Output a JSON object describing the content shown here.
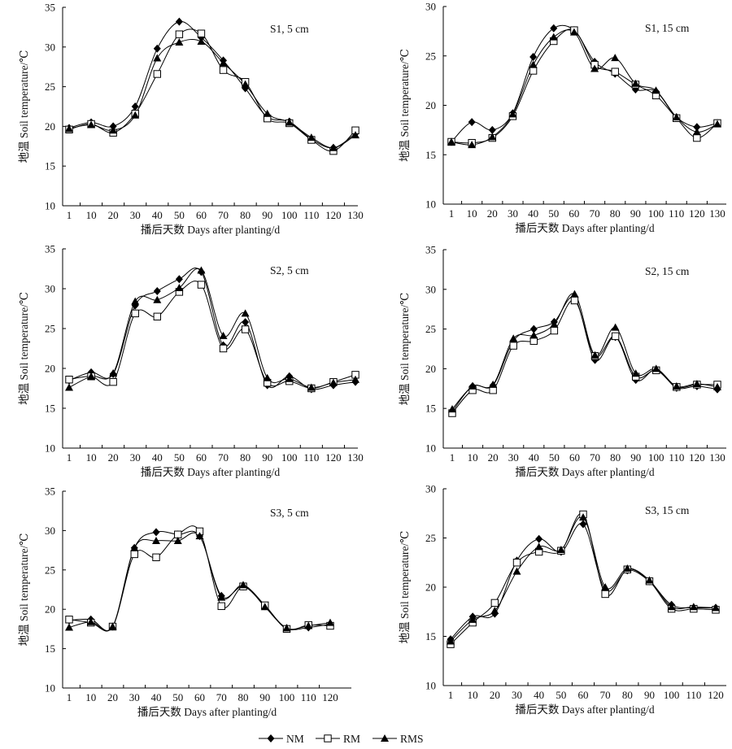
{
  "chart_data": [
    {
      "type": "line",
      "title": "S1, 5 cm",
      "xlabel": "播后天数 Days after planting/d",
      "ylabel": "地温 Soil temperature/℃",
      "categories": [
        "1",
        "10",
        "20",
        "30",
        "40",
        "50",
        "60",
        "70",
        "80",
        "90",
        "100",
        "110",
        "120",
        "130"
      ],
      "ylim": [
        10,
        35
      ],
      "yticks": [
        10,
        15,
        20,
        25,
        30,
        35
      ],
      "series": [
        {
          "name": "NM",
          "values": [
            19.8,
            20.5,
            20.0,
            22.5,
            29.8,
            33.2,
            31.2,
            28.3,
            24.8,
            21.2,
            20.6,
            18.4,
            17.3,
            19.1
          ]
        },
        {
          "name": "RM",
          "values": [
            19.6,
            20.3,
            19.2,
            21.6,
            26.6,
            31.6,
            31.7,
            27.1,
            25.6,
            21.0,
            20.4,
            18.3,
            16.9,
            19.5
          ]
        },
        {
          "name": "RMS",
          "values": [
            19.7,
            20.2,
            19.5,
            21.4,
            28.6,
            30.6,
            30.7,
            28.0,
            25.3,
            21.6,
            20.5,
            18.6,
            17.3,
            18.9
          ]
        }
      ]
    },
    {
      "type": "line",
      "title": "S1, 15 cm",
      "xlabel": "播后天数 Days after planting/d",
      "ylabel": "地温 Soil temperature/℃",
      "categories": [
        "1",
        "10",
        "20",
        "30",
        "40",
        "50",
        "60",
        "70",
        "80",
        "90",
        "100",
        "110",
        "120",
        "130"
      ],
      "ylim": [
        10,
        30
      ],
      "yticks": [
        10,
        15,
        20,
        25,
        30
      ],
      "series": [
        {
          "name": "NM",
          "values": [
            16.3,
            18.3,
            17.5,
            19.2,
            24.9,
            27.8,
            27.6,
            24.4,
            23.2,
            21.6,
            21.4,
            18.8,
            17.8,
            18.2
          ]
        },
        {
          "name": "RM",
          "values": [
            16.3,
            16.2,
            16.7,
            18.9,
            23.5,
            26.5,
            27.6,
            24.1,
            23.4,
            22.1,
            21.0,
            18.7,
            16.7,
            18.2
          ]
        },
        {
          "name": "RMS",
          "values": [
            16.3,
            16.0,
            16.8,
            19.1,
            24.1,
            26.9,
            27.4,
            23.7,
            24.8,
            22.2,
            21.5,
            18.8,
            17.3,
            18.1
          ]
        }
      ]
    },
    {
      "type": "line",
      "title": "S2, 5 cm",
      "xlabel": "播后天数 Days after planting/d",
      "ylabel": "地温 Soil temperature/℃",
      "categories": [
        "1",
        "10",
        "20",
        "30",
        "40",
        "50",
        "60",
        "70",
        "80",
        "90",
        "100",
        "110",
        "120",
        "130"
      ],
      "ylim": [
        10,
        35
      ],
      "yticks": [
        10,
        15,
        20,
        25,
        30,
        35
      ],
      "series": [
        {
          "name": "NM",
          "values": [
            18.5,
            19.5,
            19.3,
            27.9,
            29.7,
            31.2,
            32.1,
            22.9,
            25.8,
            17.9,
            19.0,
            17.4,
            17.9,
            18.3
          ]
        },
        {
          "name": "RM",
          "values": [
            18.6,
            19.0,
            18.3,
            26.9,
            26.5,
            29.6,
            30.5,
            22.5,
            24.9,
            18.2,
            18.4,
            17.5,
            18.3,
            19.2
          ]
        },
        {
          "name": "RMS",
          "values": [
            17.6,
            19.0,
            19.4,
            28.4,
            28.6,
            30.1,
            32.3,
            24.1,
            26.9,
            18.8,
            18.7,
            17.6,
            18.2,
            18.6
          ]
        }
      ]
    },
    {
      "type": "line",
      "title": "S2, 15 cm",
      "xlabel": "播后天数 Days after planting/d",
      "ylabel": "地温 Soil temperature/℃",
      "categories": [
        "1",
        "10",
        "20",
        "30",
        "40",
        "50",
        "60",
        "70",
        "80",
        "90",
        "100",
        "110",
        "120",
        "130"
      ],
      "ylim": [
        10,
        35
      ],
      "yticks": [
        10,
        15,
        20,
        25,
        30,
        35
      ],
      "series": [
        {
          "name": "NM",
          "values": [
            14.6,
            17.8,
            17.9,
            23.5,
            25.0,
            25.9,
            28.9,
            21.1,
            24.0,
            18.6,
            19.9,
            17.6,
            17.8,
            17.4
          ]
        },
        {
          "name": "RM",
          "values": [
            14.4,
            17.3,
            17.3,
            22.9,
            23.5,
            24.8,
            28.6,
            21.6,
            24.1,
            19.0,
            19.8,
            17.7,
            18.0,
            18.0
          ]
        },
        {
          "name": "RMS",
          "values": [
            14.9,
            17.8,
            18.0,
            23.8,
            24.2,
            25.6,
            29.4,
            21.7,
            25.2,
            19.4,
            20.0,
            17.8,
            18.1,
            17.7
          ]
        }
      ]
    },
    {
      "type": "line",
      "title": "S3, 5 cm",
      "xlabel": "播后天数 Days after planting/d",
      "ylabel": "地温 Soil temperature/℃",
      "categories": [
        "1",
        "10",
        "20",
        "30",
        "40",
        "50",
        "60",
        "70",
        "80",
        "90",
        "100",
        "110",
        "120"
      ],
      "ylim": [
        10,
        35
      ],
      "yticks": [
        10,
        15,
        20,
        25,
        30,
        35
      ],
      "series": [
        {
          "name": "NM",
          "values": [
            18.6,
            18.7,
            17.8,
            27.8,
            29.8,
            29.5,
            29.3,
            21.7,
            22.9,
            20.4,
            17.6,
            17.7,
            18.1
          ]
        },
        {
          "name": "RM",
          "values": [
            18.7,
            18.3,
            17.8,
            27.0,
            26.6,
            29.5,
            29.9,
            20.4,
            22.9,
            20.5,
            17.5,
            18.0,
            17.9
          ]
        },
        {
          "name": "RMS",
          "values": [
            17.7,
            18.4,
            17.8,
            27.8,
            28.7,
            28.7,
            29.3,
            21.5,
            23.1,
            20.3,
            17.6,
            17.9,
            18.3
          ]
        }
      ]
    },
    {
      "type": "line",
      "title": "S3, 15 cm",
      "xlabel": "播后天数 Days after planting/d",
      "ylabel": "地温 Soil temperature/℃",
      "categories": [
        "1",
        "10",
        "20",
        "30",
        "40",
        "50",
        "60",
        "70",
        "80",
        "90",
        "100",
        "110",
        "120"
      ],
      "ylim": [
        10,
        30
      ],
      "yticks": [
        10,
        15,
        20,
        25,
        30
      ],
      "series": [
        {
          "name": "NM",
          "values": [
            14.7,
            17.0,
            17.3,
            22.7,
            24.9,
            23.6,
            26.4,
            19.7,
            21.7,
            20.6,
            18.2,
            17.9,
            17.9
          ]
        },
        {
          "name": "RM",
          "values": [
            14.2,
            16.4,
            18.4,
            22.5,
            23.6,
            23.7,
            27.4,
            19.3,
            21.8,
            20.6,
            17.8,
            17.8,
            17.7
          ]
        },
        {
          "name": "RMS",
          "values": [
            14.5,
            16.7,
            17.6,
            21.6,
            24.1,
            23.8,
            27.1,
            20.0,
            21.9,
            20.7,
            18.0,
            18.0,
            17.9
          ]
        }
      ]
    }
  ],
  "legend": {
    "placement": "bottom-center",
    "items": [
      {
        "label": "NM",
        "marker": "diamond-filled"
      },
      {
        "label": "RM",
        "marker": "square-open"
      },
      {
        "label": "RMS",
        "marker": "triangle-filled"
      }
    ]
  }
}
